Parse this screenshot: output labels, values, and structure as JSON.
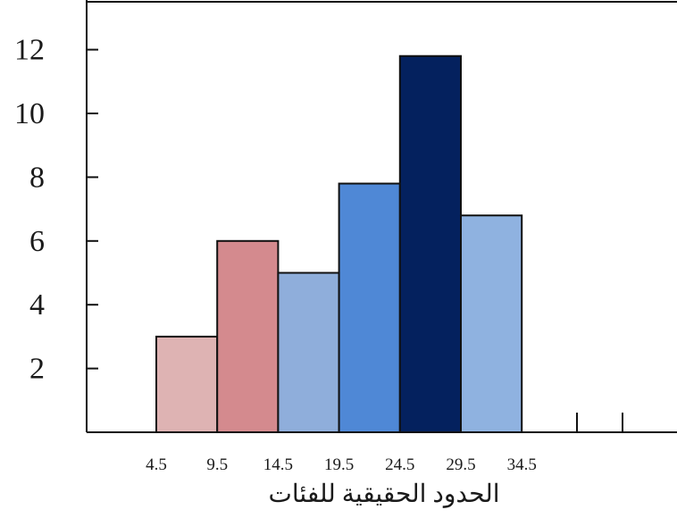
{
  "chart_data": {
    "type": "bar",
    "title": "",
    "xlabel": "الحدود الحقيقية للفئات",
    "ylabel": "",
    "x_ticks": [
      "4.5",
      "9.5",
      "14.5",
      "19.5",
      "24.5",
      "29.5",
      "34.5"
    ],
    "y_ticks": [
      "2",
      "4",
      "6",
      "8",
      "10",
      "12"
    ],
    "ylim": [
      0,
      13
    ],
    "grid": false,
    "legend": "none",
    "bins": [
      {
        "from": 4.5,
        "to": 9.5,
        "value": 3,
        "color": "#deb3b3"
      },
      {
        "from": 9.5,
        "to": 14.5,
        "value": 6,
        "color": "#d48a8e"
      },
      {
        "from": 14.5,
        "to": 19.5,
        "value": 5,
        "color": "#8faedb"
      },
      {
        "from": 19.5,
        "to": 24.5,
        "value": 7.8,
        "color": "#4f88d6"
      },
      {
        "from": 24.5,
        "to": 29.5,
        "value": 11.8,
        "color": "#04215e"
      },
      {
        "from": 29.5,
        "to": 34.5,
        "value": 6.8,
        "color": "#8fb2e0"
      }
    ]
  }
}
